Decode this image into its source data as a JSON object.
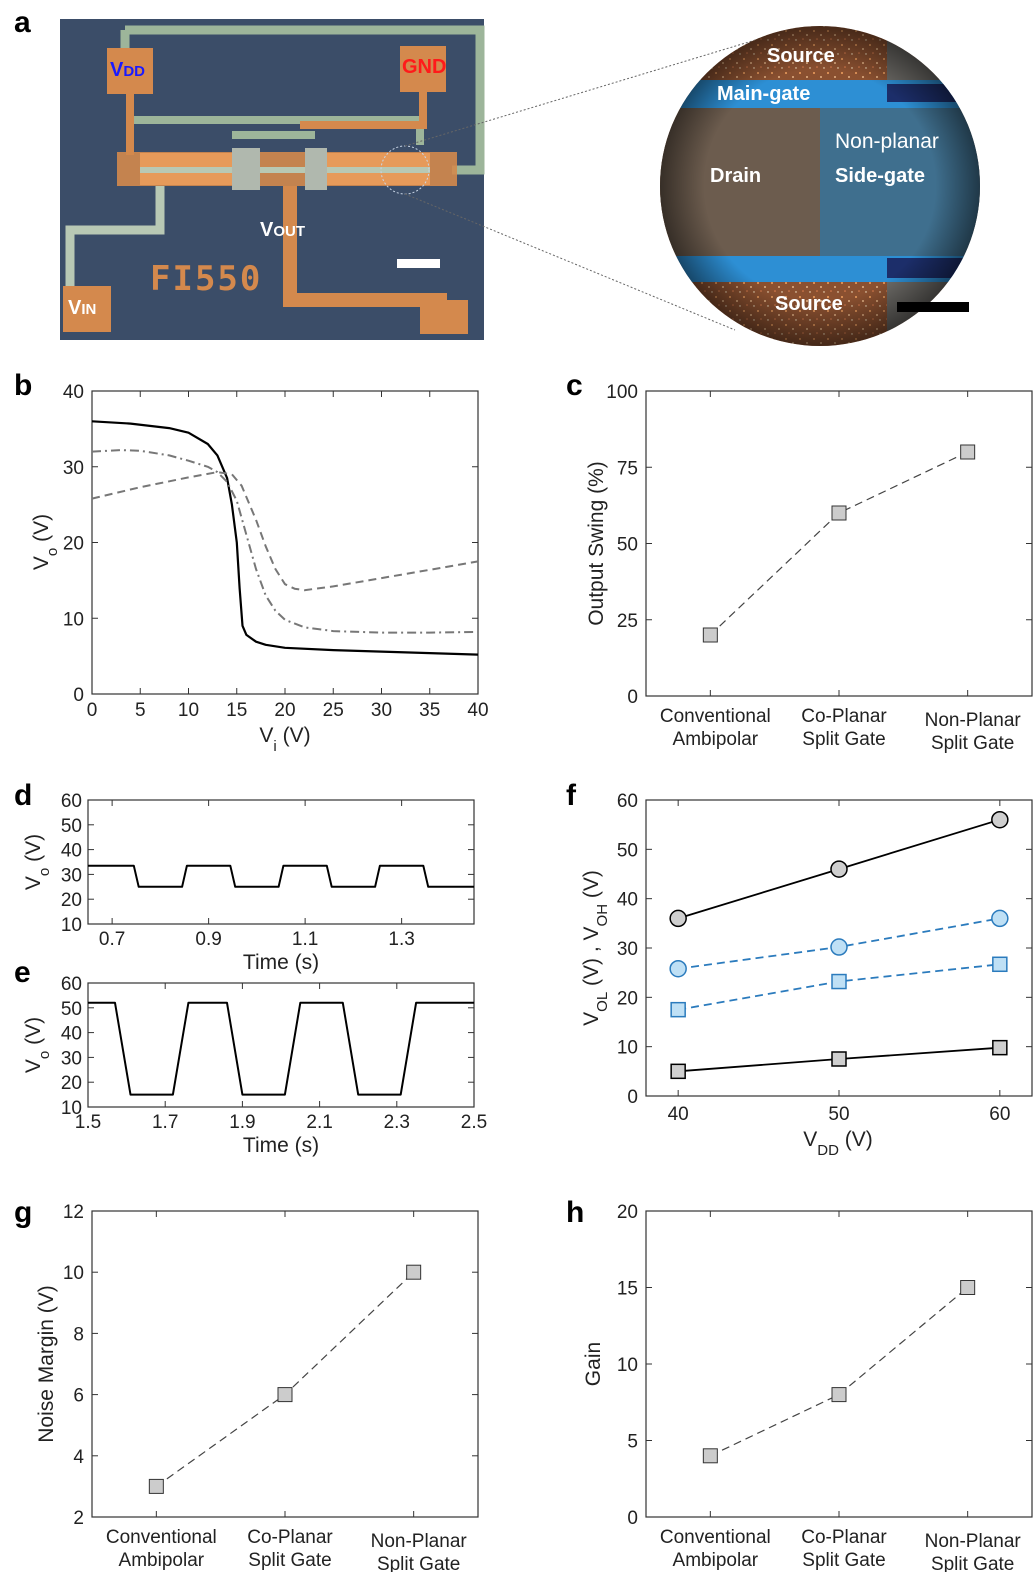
{
  "panel_a": {
    "letter": "a",
    "chip_labels": {
      "vdd": {
        "main": "V",
        "sub": "DD",
        "color": "#1a1aff"
      },
      "gnd": {
        "main": "GND",
        "color": "#ff1a1a"
      },
      "vout": {
        "main": "V",
        "sub": "OUT"
      },
      "vin": {
        "main": "V",
        "sub": "IN"
      },
      "chip_id": "FI550"
    },
    "zoom_labels": {
      "source_top": "Source",
      "main_gate": "Main-gate",
      "non_planar": "Non-planar",
      "drain": "Drain",
      "side_gate": "Side-gate",
      "source_bottom": "Source"
    }
  },
  "chart_data": [
    {
      "id": "b",
      "panel": "b",
      "type": "line",
      "xlabel": "V",
      "xlabel_sub": "i",
      "xlabel_unit": " (V)",
      "ylabel": "V",
      "ylabel_sub": "o",
      "ylabel_unit": " (V)",
      "xlim": [
        0,
        40
      ],
      "ylim": [
        0,
        40
      ],
      "xticks": [
        0,
        5,
        10,
        15,
        20,
        25,
        30,
        35,
        40
      ],
      "yticks": [
        0,
        10,
        20,
        30,
        40
      ],
      "series": [
        {
          "style": "solid",
          "color": "#000000",
          "x": [
            0,
            4,
            8,
            10,
            12,
            13,
            14,
            14.5,
            15,
            15.3,
            15.6,
            16,
            17,
            18,
            20,
            25,
            30,
            35,
            40
          ],
          "y": [
            36,
            35.7,
            35.1,
            34.5,
            33,
            31.5,
            28.5,
            25,
            20,
            14,
            9,
            7.8,
            6.9,
            6.5,
            6.1,
            5.8,
            5.6,
            5.4,
            5.2
          ]
        },
        {
          "style": "dashdot",
          "color": "#777777",
          "x": [
            0,
            3,
            5,
            8,
            10,
            12,
            13,
            14,
            15,
            16,
            17,
            18,
            19,
            20,
            22,
            25,
            30,
            35,
            40
          ],
          "y": [
            32,
            32.2,
            32.1,
            31.5,
            30.8,
            30,
            29.3,
            28,
            25.5,
            21,
            16.5,
            13,
            11,
            9.8,
            8.8,
            8.3,
            8.1,
            8.1,
            8.2
          ]
        },
        {
          "style": "dashed",
          "color": "#777777",
          "x": [
            0,
            5,
            10,
            13,
            14.5,
            15.5,
            17,
            18,
            19,
            20,
            21,
            22,
            25,
            30,
            35,
            40
          ],
          "y": [
            25.8,
            27.3,
            28.6,
            29.3,
            29.0,
            27.5,
            23,
            19.5,
            16.5,
            14.5,
            13.9,
            13.7,
            14.2,
            15.3,
            16.4,
            17.5
          ]
        }
      ]
    },
    {
      "id": "c",
      "panel": "c",
      "type": "line",
      "ylabel": "Output Swing (%)",
      "ylim": [
        0,
        100
      ],
      "yticks": [
        0,
        25,
        50,
        75,
        100
      ],
      "categories": [
        [
          "Conventional",
          "Ambipolar"
        ],
        [
          "Co-Planar",
          "Split Gate"
        ],
        [
          "Non-Planar",
          "Split Gate"
        ]
      ],
      "values": [
        20,
        60,
        80
      ]
    },
    {
      "id": "d",
      "panel": "d",
      "type": "line",
      "xlabel": "Time (s)",
      "ylabel": "V",
      "ylabel_sub": "o",
      "ylabel_unit": " (V)",
      "xlim": [
        0.65,
        1.45
      ],
      "ylim": [
        10,
        60
      ],
      "xticks": [
        0.7,
        0.9,
        1.1,
        1.3
      ],
      "yticks": [
        10,
        20,
        30,
        40,
        50,
        60
      ],
      "high": 33.5,
      "low": 25,
      "x": [
        0.65,
        0.745,
        0.755,
        0.845,
        0.855,
        0.945,
        0.955,
        1.045,
        1.055,
        1.145,
        1.155,
        1.245,
        1.255,
        1.345,
        1.355,
        1.45
      ],
      "y": [
        33.5,
        33.5,
        25,
        25,
        33.5,
        33.5,
        25,
        25,
        33.5,
        33.5,
        25,
        25,
        33.5,
        33.5,
        25,
        25
      ]
    },
    {
      "id": "e",
      "panel": "e",
      "type": "line",
      "xlabel": "Time (s)",
      "ylabel": "V",
      "ylabel_sub": "o",
      "ylabel_unit": " (V)",
      "xlim": [
        1.5,
        2.5
      ],
      "ylim": [
        10,
        60
      ],
      "xticks": [
        1.5,
        1.7,
        1.9,
        2.1,
        2.3,
        2.5
      ],
      "yticks": [
        10,
        20,
        30,
        40,
        50,
        60
      ],
      "x": [
        1.5,
        1.57,
        1.61,
        1.72,
        1.76,
        1.86,
        1.9,
        2.01,
        2.05,
        2.16,
        2.2,
        2.31,
        2.35,
        2.45,
        2.49,
        2.5
      ],
      "y": [
        52,
        52,
        15,
        15,
        52,
        52,
        15,
        15,
        52,
        52,
        15,
        15,
        52,
        52,
        52,
        52
      ]
    },
    {
      "id": "f",
      "panel": "f",
      "type": "scatter",
      "xlabel": "V",
      "xlabel_sub": "DD",
      "xlabel_unit": " (V)",
      "ylabel_parts": [
        [
          "V",
          "OL",
          " (V) , "
        ],
        [
          "V",
          "OH",
          " (V)"
        ]
      ],
      "xlim": [
        38,
        62
      ],
      "ylim": [
        0,
        60
      ],
      "xticks": [
        40,
        50,
        60
      ],
      "yticks": [
        0,
        10,
        20,
        30,
        40,
        50,
        60
      ],
      "x": [
        40,
        50,
        60
      ],
      "series": [
        {
          "marker": "circle",
          "style": "solid",
          "line": "#000000",
          "fill": "#cfcfcf",
          "values": [
            36,
            46,
            56
          ]
        },
        {
          "marker": "circle",
          "style": "dashed",
          "line": "#2b7bbd",
          "fill": "#bfe0f5",
          "values": [
            25.8,
            30.2,
            36
          ]
        },
        {
          "marker": "square",
          "style": "dashed",
          "line": "#2b7bbd",
          "fill": "#bfe0f5",
          "values": [
            17.5,
            23.2,
            26.7
          ]
        },
        {
          "marker": "square",
          "style": "solid",
          "line": "#000000",
          "fill": "#cfcfcf",
          "values": [
            5,
            7.5,
            9.8
          ]
        }
      ]
    },
    {
      "id": "g",
      "panel": "g",
      "type": "line",
      "ylabel": "Noise Margin (V)",
      "ylim": [
        2,
        12
      ],
      "yticks": [
        2,
        4,
        6,
        8,
        10,
        12
      ],
      "categories": [
        [
          "Conventional",
          "Ambipolar"
        ],
        [
          "Co-Planar",
          "Split Gate"
        ],
        [
          "Non-Planar",
          "Split Gate"
        ]
      ],
      "values": [
        3,
        6,
        10
      ]
    },
    {
      "id": "h",
      "panel": "h",
      "type": "line",
      "ylabel": "Gain",
      "ylim": [
        0,
        20
      ],
      "yticks": [
        0,
        5,
        10,
        15,
        20
      ],
      "categories": [
        [
          "Conventional",
          "Ambipolar"
        ],
        [
          "Co-Planar",
          "Split Gate"
        ],
        [
          "Non-Planar",
          "Split Gate"
        ]
      ],
      "values": [
        4,
        8,
        15
      ]
    }
  ]
}
